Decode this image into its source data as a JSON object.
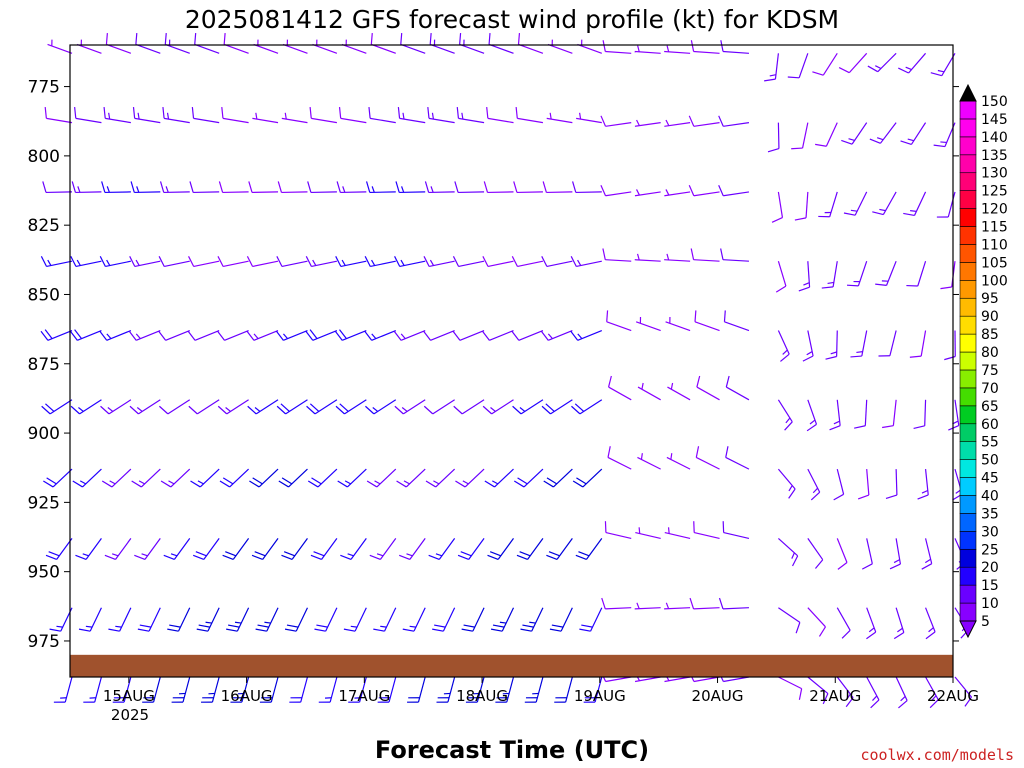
{
  "chart_data": {
    "type": "wind_barb_time_height",
    "title": "2025081412 GFS forecast wind profile (kt) for KDSM",
    "xlabel": "Forecast Time (UTC)",
    "ylabel": "",
    "credit": "coolwx.com/models",
    "year_label": "2025",
    "x_ticks": [
      "15AUG",
      "16AUG",
      "17AUG",
      "18AUG",
      "19AUG",
      "20AUG",
      "21AUG",
      "22AUG"
    ],
    "xlim_hours_from_0000z_15aug": [
      -12,
      168
    ],
    "y_ticks": [
      775,
      800,
      825,
      850,
      875,
      900,
      925,
      950,
      975
    ],
    "ylim_hpa": [
      760,
      988
    ],
    "levels_hpa": [
      763,
      788,
      813,
      838,
      863,
      888,
      913,
      938,
      963,
      988
    ],
    "forecast_step_hours": 6,
    "ground_surface_pressure_hpa": 980,
    "colorbar": {
      "units": "kt",
      "ticks": [
        5,
        10,
        15,
        20,
        25,
        30,
        35,
        40,
        45,
        50,
        55,
        60,
        65,
        70,
        75,
        80,
        85,
        90,
        95,
        100,
        105,
        110,
        115,
        120,
        125,
        130,
        135,
        140,
        145,
        150
      ],
      "colors": [
        "#8800ff",
        "#6a00ff",
        "#2200ff",
        "#0000dd",
        "#0033ff",
        "#0066ff",
        "#0099ff",
        "#00ccff",
        "#00e8e0",
        "#00ddaa",
        "#00cc66",
        "#00cc22",
        "#44dd00",
        "#88ee00",
        "#ccff00",
        "#ffff00",
        "#ffdd00",
        "#ffbb00",
        "#ff9900",
        "#ff7700",
        "#ff5500",
        "#ff3300",
        "#ff0000",
        "#ff0044",
        "#ff0077",
        "#ff00aa",
        "#ff00cc",
        "#ff00ee",
        "#ee00ff"
      ]
    },
    "terrain_color": "#a0522d"
  }
}
